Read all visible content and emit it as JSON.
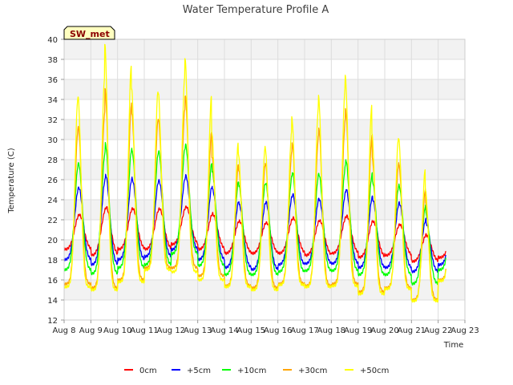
{
  "chart_data": {
    "type": "line",
    "title": "Water Temperature Profile A",
    "xlabel": "Time",
    "ylabel": "Temperature (C)",
    "badge": "SW_met",
    "xlim": [
      8,
      23
    ],
    "ylim": [
      12,
      40
    ],
    "x_ticks": [
      8,
      9,
      10,
      11,
      12,
      13,
      14,
      15,
      16,
      17,
      18,
      19,
      20,
      21,
      22,
      23
    ],
    "x_tick_labels": [
      "Aug 8",
      "Aug 9",
      "Aug 10",
      "Aug 11",
      "Aug 12",
      "Aug 13",
      "Aug 14",
      "Aug 15",
      "Aug 16",
      "Aug 17",
      "Aug 18",
      "Aug 19",
      "Aug 20",
      "Aug 21",
      "Aug 22",
      "Aug 23"
    ],
    "y_ticks": [
      12,
      14,
      16,
      18,
      20,
      22,
      24,
      26,
      28,
      30,
      32,
      34,
      36,
      38,
      40
    ],
    "grid": true,
    "legend_position": "bottom-center",
    "data_start": 8.0,
    "data_end": 22.3,
    "series": [
      {
        "name": "0cm",
        "color": "#ff0000",
        "peak_phase": 0.57,
        "width": 0.17,
        "min": [
          19.0,
          18.4,
          19.0,
          19.0,
          19.5,
          19.0,
          18.6,
          18.6,
          18.6,
          18.4,
          18.6,
          18.2,
          18.4,
          17.8,
          18.2
        ],
        "max": [
          22.5,
          23.3,
          23.1,
          23.1,
          23.3,
          22.5,
          21.8,
          21.7,
          22.2,
          21.9,
          22.4,
          21.8,
          21.5,
          20.4,
          20.4
        ]
      },
      {
        "name": "+5cm",
        "color": "#0000ff",
        "peak_phase": 0.55,
        "width": 0.15,
        "min": [
          18.0,
          17.5,
          18.0,
          18.3,
          19.0,
          18.0,
          17.2,
          17.0,
          17.5,
          17.6,
          17.6,
          17.2,
          17.2,
          16.8,
          17.5
        ],
        "max": [
          25.2,
          26.5,
          26.0,
          25.9,
          26.4,
          25.0,
          23.5,
          23.8,
          24.6,
          24.0,
          25.1,
          24.0,
          23.6,
          21.6,
          21.6
        ]
      },
      {
        "name": "+10cm",
        "color": "#00ff00",
        "peak_phase": 0.54,
        "width": 0.14,
        "min": [
          17.0,
          16.6,
          17.2,
          17.5,
          18.6,
          17.4,
          16.5,
          16.5,
          16.8,
          16.9,
          16.9,
          16.5,
          16.5,
          15.6,
          17.0
        ],
        "max": [
          27.6,
          29.6,
          28.8,
          28.8,
          29.5,
          26.8,
          25.4,
          25.7,
          26.8,
          26.5,
          28.0,
          25.8,
          25.3,
          22.6,
          22.6
        ]
      },
      {
        "name": "+30cm",
        "color": "#ffa500",
        "peak_phase": 0.53,
        "width": 0.12,
        "min": [
          15.6,
          15.2,
          16.0,
          17.2,
          17.2,
          16.4,
          15.4,
          15.2,
          15.6,
          15.4,
          15.6,
          14.8,
          15.2,
          14.0,
          16.0
        ],
        "max": [
          31.2,
          35.0,
          32.5,
          31.9,
          34.4,
          28.3,
          27.0,
          27.7,
          29.7,
          31.1,
          33.0,
          28.1,
          27.4,
          23.6,
          23.6
        ]
      },
      {
        "name": "+50cm",
        "color": "#ffff00",
        "peak_phase": 0.52,
        "width": 0.11,
        "min": [
          15.3,
          15.0,
          15.8,
          17.0,
          16.8,
          16.0,
          15.3,
          15.0,
          15.5,
          15.3,
          15.4,
          14.6,
          15.1,
          13.9,
          15.9
        ],
        "max": [
          34.2,
          39.5,
          35.1,
          34.7,
          38.2,
          30.8,
          28.6,
          29.3,
          32.2,
          34.3,
          36.3,
          30.5,
          30.0,
          24.9,
          24.9
        ]
      }
    ]
  }
}
